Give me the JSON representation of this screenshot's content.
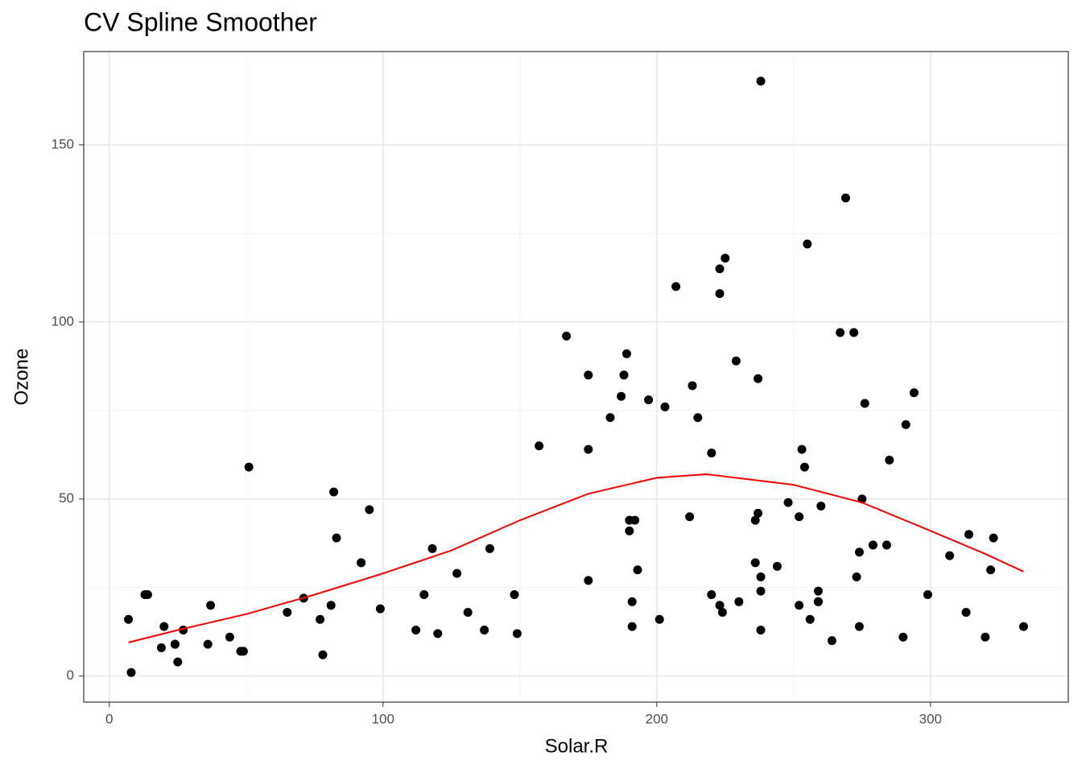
{
  "chart_data": {
    "type": "scatter",
    "title": "CV Spline Smoother",
    "x_label": "Solar.R",
    "y_label": "Ozone",
    "x": [
      190,
      118,
      149,
      313,
      299,
      99,
      19,
      256,
      290,
      274,
      65,
      334,
      307,
      78,
      322,
      44,
      8,
      320,
      25,
      92,
      13,
      252,
      223,
      279,
      127,
      291,
      323,
      148,
      191,
      284,
      37,
      120,
      137,
      269,
      248,
      236,
      175,
      314,
      276,
      267,
      272,
      175,
      264,
      175,
      48,
      260,
      274,
      285,
      187,
      220,
      7,
      294,
      223,
      81,
      82,
      213,
      275,
      253,
      254,
      83,
      24,
      77,
      255,
      229,
      207,
      192,
      273,
      157,
      71,
      51,
      115,
      244,
      190,
      259,
      36,
      212,
      238,
      215,
      203,
      225,
      237,
      188,
      167,
      197,
      183,
      189,
      95,
      92,
      252,
      220,
      230,
      259,
      236,
      259,
      238,
      24,
      112,
      237,
      224,
      27,
      238,
      201,
      238,
      14,
      139,
      49,
      20,
      193,
      191,
      131,
      223
    ],
    "values": [
      41,
      36,
      12,
      18,
      23,
      19,
      8,
      16,
      11,
      14,
      18,
      14,
      34,
      6,
      30,
      11,
      1,
      11,
      4,
      32,
      23,
      45,
      115,
      37,
      29,
      71,
      39,
      23,
      21,
      37,
      20,
      12,
      13,
      135,
      49,
      32,
      64,
      40,
      77,
      97,
      97,
      85,
      10,
      27,
      7,
      48,
      35,
      61,
      79,
      63,
      16,
      80,
      108,
      20,
      52,
      82,
      50,
      64,
      59,
      39,
      9,
      16,
      122,
      89,
      110,
      44,
      28,
      65,
      22,
      59,
      23,
      31,
      44,
      21,
      9,
      45,
      168,
      73,
      76,
      118,
      84,
      85,
      96,
      78,
      73,
      91,
      47,
      32,
      20,
      23,
      21,
      24,
      44,
      21,
      28,
      9,
      13,
      46,
      18,
      13,
      24,
      16,
      13,
      23,
      36,
      7,
      14,
      30,
      14,
      18,
      20
    ],
    "color": "#000000",
    "smooth": {
      "x": [
        7,
        25,
        50,
        75,
        100,
        125,
        150,
        175,
        200,
        218,
        250,
        275,
        300,
        320,
        334
      ],
      "values": [
        9.5,
        13,
        17.5,
        23,
        29,
        35.5,
        44,
        51.5,
        56,
        57,
        54,
        49,
        41,
        34.5,
        29.5
      ],
      "color": "#ff0000"
    },
    "xlim": [
      -9.35,
      350.35
    ],
    "ylim": [
      -7.35,
      176.35
    ],
    "xticks": [
      0,
      100,
      200,
      300
    ],
    "yticks": [
      0,
      50,
      100,
      150
    ],
    "xminor": [
      50,
      150,
      250
    ],
    "yminor": [
      25,
      75,
      125
    ],
    "grid": true
  }
}
